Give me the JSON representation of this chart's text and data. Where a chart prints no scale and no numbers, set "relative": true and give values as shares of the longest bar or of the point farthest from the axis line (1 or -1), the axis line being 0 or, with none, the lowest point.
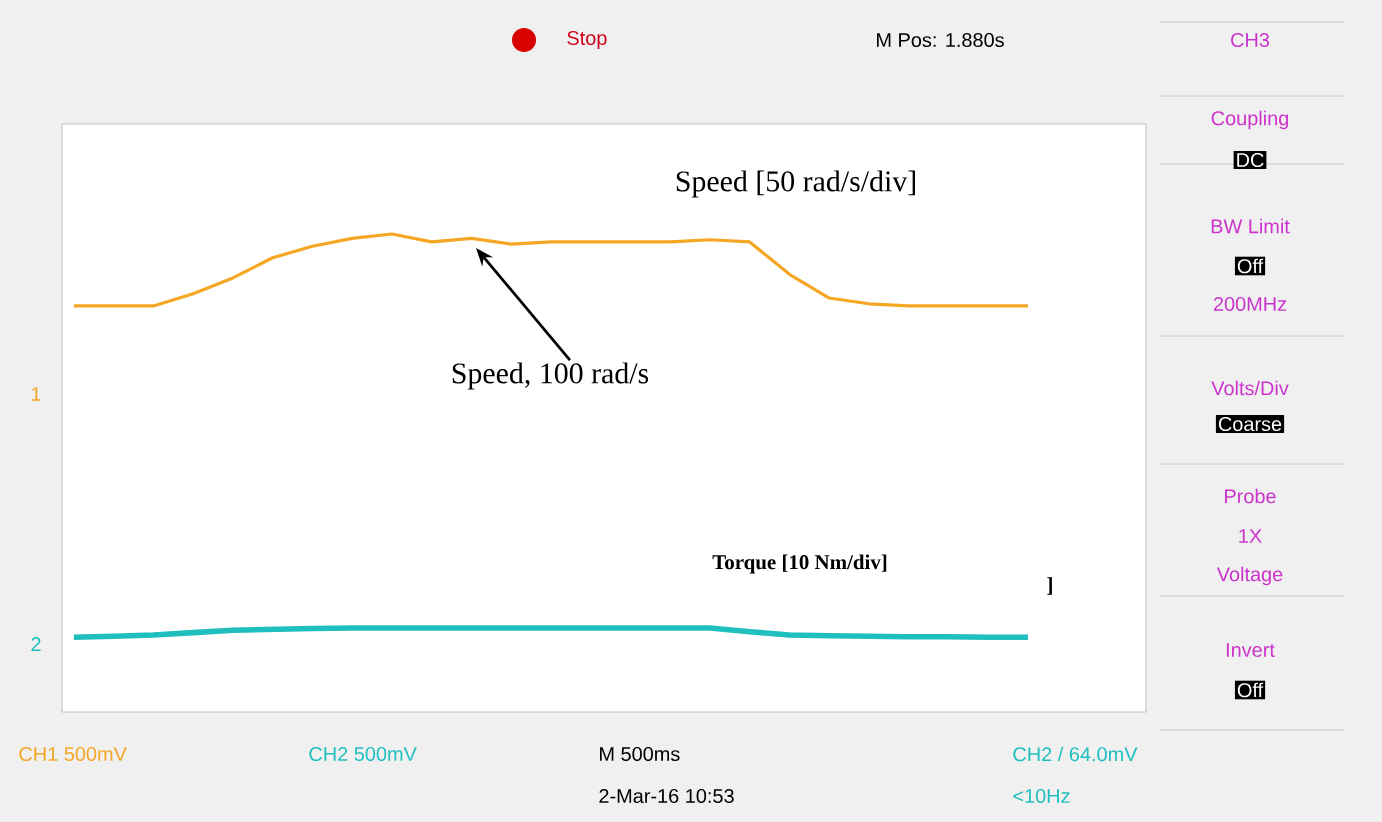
{
  "chart_data": [
    {
      "type": "line",
      "relative": true,
      "categories": [
        null,
        null,
        null,
        null,
        null,
        null,
        null,
        null,
        null,
        null,
        null,
        null,
        null,
        null,
        null,
        null,
        null,
        null,
        null,
        null,
        null,
        null,
        null,
        null,
        null
      ],
      "series": [
        {
          "color": "#f5a623",
          "values": [
            0,
            0,
            0,
            0.17,
            0.39,
            0.67,
            0.83,
            0.94,
            1,
            0.89,
            0.94,
            0.86,
            0.89,
            0.89,
            0.89,
            0.89,
            0.92,
            0.89,
            0.44,
            0.11,
            0.03,
            0,
            0,
            0,
            0
          ]
        }
      ],
      "annotations": [
        "Speed [50 rad/s/div]",
        "Speed, 100 rad/s",
        "Stop",
        "M Pos: 1.880s",
        "CH3",
        "Coupling",
        "DC",
        "BW Limit",
        "Off",
        "200MHz",
        "Volts/Div",
        "Coarse",
        "Probe",
        "1X",
        "Voltage",
        "Invert",
        "Off",
        "CH1  500mV",
        "CH2  500mV",
        "M 500ms",
        "2-Mar-16 10:53",
        "CH2 / 64.0mV",
        "<10Hz",
        "1"
      ]
    },
    {
      "type": "line",
      "relative": true,
      "categories": [
        null,
        null,
        null,
        null,
        null,
        null,
        null,
        null,
        null,
        null,
        null,
        null,
        null,
        null,
        null,
        null,
        null,
        null,
        null,
        null,
        null,
        null,
        null,
        null,
        null
      ],
      "series": [
        {
          "color": "#1fbfbf",
          "values": [
            0,
            0.1,
            0.25,
            0.5,
            0.75,
            0.85,
            0.95,
            1,
            1,
            1,
            1,
            1,
            1,
            1,
            1,
            1,
            1,
            0.6,
            0.25,
            0.15,
            0.1,
            0.05,
            0.05,
            0,
            0
          ]
        }
      ],
      "annotations": [
        "Torque [10 Nm/div]",
        "]",
        "2"
      ]
    }
  ]
}
